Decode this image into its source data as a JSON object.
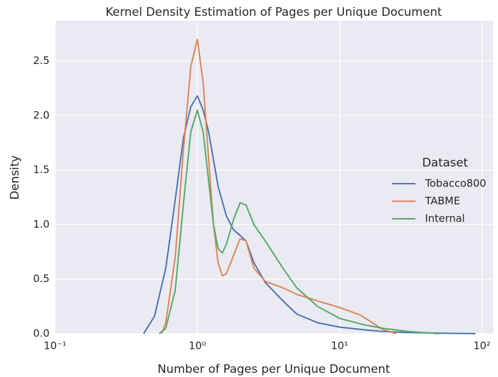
{
  "chart_data": {
    "type": "line",
    "title": "Kernel Density Estimation of Pages per Unique Document",
    "xlabel": "Number of Pages per Unique Document",
    "ylabel": "Density",
    "xscale": "log",
    "xlim": [
      0.1,
      120
    ],
    "ylim": [
      0,
      2.87
    ],
    "xticks": [
      {
        "value": 0.1,
        "label": "10⁻¹"
      },
      {
        "value": 1,
        "label": "10⁰"
      },
      {
        "value": 10,
        "label": "10¹"
      },
      {
        "value": 100,
        "label": "10²"
      }
    ],
    "yticks": [
      {
        "value": 0,
        "label": "0.0"
      },
      0.5,
      {
        "value": 1,
        "label": "1.0"
      },
      1.5,
      {
        "value": 2,
        "label": "2.0"
      },
      2.5
    ],
    "grid": true,
    "legend_title": "Dataset",
    "legend_position": "right",
    "series": [
      {
        "name": "Tobacco800",
        "color": "#4c72b0",
        "x": [
          0.42,
          0.5,
          0.6,
          0.7,
          0.8,
          0.9,
          1.0,
          1.1,
          1.2,
          1.4,
          1.6,
          1.8,
          2.0,
          2.2,
          2.5,
          3,
          4,
          5,
          7,
          10,
          15,
          20,
          30,
          50,
          90
        ],
        "values": [
          0,
          0.16,
          0.6,
          1.23,
          1.8,
          2.08,
          2.18,
          2.05,
          1.85,
          1.35,
          1.08,
          0.95,
          0.9,
          0.85,
          0.65,
          0.47,
          0.3,
          0.18,
          0.1,
          0.06,
          0.035,
          0.02,
          0.01,
          0.005,
          0
        ]
      },
      {
        "name": "TABME",
        "color": "#dd8452",
        "x": [
          0.56,
          0.6,
          0.7,
          0.8,
          0.9,
          1.0,
          1.1,
          1.2,
          1.3,
          1.4,
          1.5,
          1.6,
          1.8,
          2.0,
          2.2,
          2.5,
          3,
          4,
          5,
          7,
          10,
          14,
          17,
          20,
          25
        ],
        "values": [
          0,
          0.1,
          0.7,
          1.7,
          2.45,
          2.7,
          2.3,
          1.6,
          1.0,
          0.65,
          0.53,
          0.55,
          0.72,
          0.87,
          0.85,
          0.6,
          0.48,
          0.42,
          0.36,
          0.3,
          0.24,
          0.17,
          0.1,
          0.04,
          0
        ]
      },
      {
        "name": "Internal",
        "color": "#55a868",
        "x": [
          0.54,
          0.6,
          0.7,
          0.8,
          0.9,
          1.0,
          1.1,
          1.2,
          1.3,
          1.4,
          1.5,
          1.6,
          1.8,
          2.0,
          2.2,
          2.5,
          3,
          4,
          5,
          7,
          10,
          15,
          20,
          30,
          50
        ],
        "values": [
          0,
          0.05,
          0.4,
          1.2,
          1.85,
          2.05,
          1.85,
          1.4,
          1.0,
          0.78,
          0.74,
          0.82,
          1.05,
          1.2,
          1.18,
          1.0,
          0.85,
          0.6,
          0.42,
          0.25,
          0.14,
          0.08,
          0.05,
          0.02,
          0
        ]
      }
    ]
  }
}
